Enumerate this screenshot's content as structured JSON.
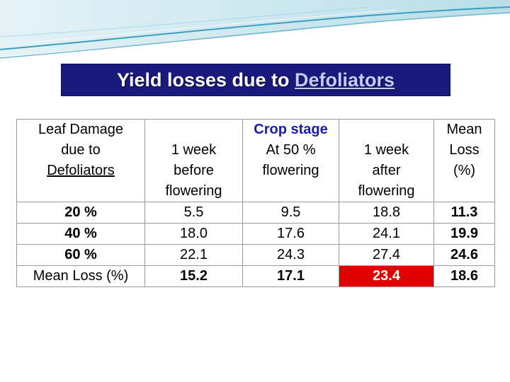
{
  "title": {
    "prefix": "Yield losses due to",
    "link": "Defoliators"
  },
  "table": {
    "row_header": {
      "line1": "Leaf Damage",
      "line2": "due to",
      "line3": "Defoliators"
    },
    "crop_stage_label": "Crop stage",
    "col_week_before": {
      "line1": "1 week",
      "line2": "before",
      "line3": "flowering"
    },
    "col_fifty": {
      "line1": "At 50 %",
      "line2": "flowering"
    },
    "col_week_after": {
      "line1": "1 week",
      "line2": "after",
      "line3": "flowering"
    },
    "col_mean": {
      "line1": "Mean",
      "line2": "Loss",
      "line3": "(%)"
    },
    "rows": [
      {
        "label": "20 %",
        "before": "5.5",
        "fifty": "9.5",
        "after": "18.8",
        "mean": "11.3"
      },
      {
        "label": "40 %",
        "before": "18.0",
        "fifty": "17.6",
        "after": "24.1",
        "mean": "19.9"
      },
      {
        "label": "60 %",
        "before": "22.1",
        "fifty": "24.3",
        "after": "27.4",
        "mean": "24.6"
      },
      {
        "label": "Mean Loss (%)",
        "before": "15.2",
        "fifty": "17.1",
        "after": "23.4",
        "mean": "18.6"
      }
    ]
  },
  "colors": {
    "title_bg": "#1a1a7e",
    "highlight": "#e00000",
    "link": "#1a1ab0"
  }
}
